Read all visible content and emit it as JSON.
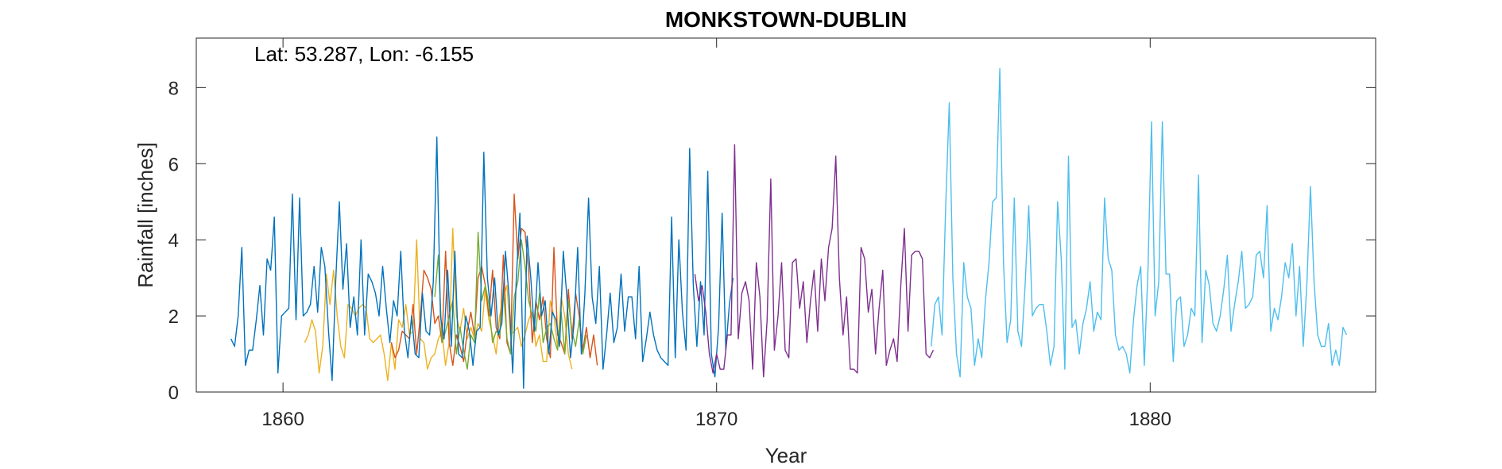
{
  "chart_data": {
    "type": "line",
    "title": "MONKSTOWN-DUBLIN",
    "xlabel": "Year",
    "ylabel": "Rainfall [inches]",
    "annotation": "Lat: 53.287, Lon: -6.155",
    "xlim": [
      1858.0,
      1885.2
    ],
    "ylim": [
      0,
      9.3
    ],
    "xticks": [
      1860,
      1870,
      1880
    ],
    "yticks": [
      0,
      2,
      4,
      6,
      8
    ],
    "grid": false,
    "legend": "none",
    "series": [
      {
        "color": "#EDB120",
        "start": 1860.5,
        "step": 0.0833,
        "values": [
          1.3,
          1.5,
          1.9,
          1.6,
          0.5,
          1.2,
          3.1,
          2.3,
          3.2,
          2.0,
          1.2,
          0.9,
          2.3,
          2.2,
          2.0,
          2.2,
          2.3,
          2.2,
          1.4,
          1.3,
          1.4,
          1.5,
          1.0,
          0.3,
          1.3,
          0.6,
          1.9,
          1.7,
          2.3,
          1.5,
          1.6,
          4.0,
          1.4,
          1.3,
          0.6,
          0.9,
          1.0,
          1.4,
          1.6,
          0.7,
          1.3,
          4.3,
          2.0,
          1.6,
          2.2,
          1.4,
          1.7,
          1.4,
          1.8,
          1.6,
          2.7,
          1.9,
          1.5,
          1.0,
          2.0,
          2.5,
          2.8,
          1.5,
          1.6,
          1.7,
          1.2,
          1.5,
          1.9,
          2.1,
          1.2,
          1.5,
          0.8,
          0.8,
          2.4,
          2.0,
          1.2,
          2.5,
          2.0,
          1.0,
          0.6
        ]
      },
      {
        "color": "#D95319",
        "start": 1862.5,
        "step": 0.0833,
        "values": [
          1.3,
          0.9,
          1.1,
          1.6,
          1.5,
          1.4,
          2.3,
          1.0,
          2.0,
          3.2,
          3.0,
          2.7,
          1.8,
          2.0,
          1.3,
          3.7,
          1.3,
          0.7,
          1.5,
          1.2,
          0.8,
          1.6,
          2.1,
          1.5,
          3.0,
          3.3,
          2.8,
          2.0,
          3.2,
          1.7,
          1.4,
          3.6,
          1.3,
          1.0,
          5.2,
          3.5,
          4.3,
          4.2,
          3.2,
          1.3,
          2.4,
          1.9,
          2.5,
          1.4,
          0.9,
          3.8,
          1.5,
          1.3,
          1.0,
          2.7,
          1.4,
          2.6,
          2.0,
          1.1,
          1.7,
          0.9,
          1.5,
          0.7
        ]
      },
      {
        "color": "#77AC30",
        "start": 1863.5,
        "step": 0.0833,
        "values": [
          2.5,
          3.6,
          1.3,
          1.6,
          2.0,
          2.4,
          1.0,
          1.7,
          1.1,
          0.6,
          1.5,
          1.3,
          4.2,
          2.4,
          2.8,
          2.3,
          1.3,
          1.6,
          1.5,
          2.7,
          1.4,
          1.0,
          2.5,
          2.9,
          4.0,
          3.3,
          2.4,
          2.0,
          1.6,
          2.6,
          1.3,
          1.7,
          1.8,
          1.4,
          1.1,
          2.1,
          1.0,
          2.4,
          1.6,
          1.2,
          1.9,
          1.0,
          1.5
        ]
      },
      {
        "color": "#0072BD",
        "start": 1858.8,
        "step": 0.0833,
        "values": [
          1.4,
          1.2,
          2.0,
          3.8,
          0.7,
          1.1,
          1.1,
          1.9,
          2.8,
          1.5,
          3.5,
          3.2,
          4.6,
          0.5,
          2.0,
          2.1,
          2.2,
          5.2,
          1.9,
          5.1,
          2.0,
          2.1,
          2.3,
          3.3,
          2.1,
          3.8,
          3.3,
          1.6,
          0.3,
          2.9,
          5.0,
          2.7,
          3.9,
          1.7,
          2.5,
          1.5,
          4.0,
          1.5,
          3.1,
          2.9,
          2.6,
          2.0,
          3.3,
          2.2,
          1.3,
          2.4,
          2.0,
          3.7,
          1.6,
          0.9,
          2.0,
          1.0,
          0.9,
          2.6,
          1.6,
          1.5,
          2.9,
          6.7,
          2.0,
          1.4,
          3.2,
          1.2,
          3.7,
          1.0,
          0.9,
          2.0,
          1.6,
          0.7,
          1.6,
          1.7,
          6.3,
          3.0,
          2.0,
          3.0,
          1.5,
          1.8,
          3.7,
          2.5,
          0.5,
          3.0,
          4.7,
          0.1,
          4.1,
          3.0,
          1.6,
          3.4,
          2.0,
          2.4,
          1.0,
          2.1,
          1.9,
          1.2,
          3.7,
          2.5,
          0.9,
          1.8,
          3.8,
          1.0,
          2.6,
          5.1,
          2.5,
          1.8,
          3.3,
          0.6,
          1.5,
          2.6,
          1.3,
          1.7,
          3.1,
          1.6,
          2.5,
          2.5,
          1.4,
          3.3,
          0.8,
          1.4,
          2.1,
          1.5,
          1.1,
          0.9,
          0.8,
          0.7,
          4.6,
          0.9,
          4.0,
          2.1,
          1.1,
          6.4,
          2.8,
          1.2,
          2.9,
          1.5,
          5.8,
          1.0,
          0.4,
          1.7,
          4.7,
          1.1,
          2.3,
          3.0
        ]
      },
      {
        "color": "#7E2F8E",
        "start": 1869.5,
        "step": 0.0833,
        "values": [
          3.1,
          2.4,
          2.8,
          2.1,
          1.0,
          0.5,
          1.0,
          0.6,
          0.6,
          1.5,
          1.5,
          6.5,
          1.4,
          2.6,
          2.9,
          2.4,
          0.6,
          3.4,
          2.5,
          0.4,
          1.9,
          5.6,
          1.1,
          2.0,
          3.4,
          1.1,
          0.9,
          3.4,
          3.5,
          2.2,
          2.9,
          1.3,
          2.4,
          3.2,
          1.6,
          3.5,
          2.4,
          3.8,
          4.3,
          6.2,
          3.0,
          1.5,
          2.5,
          0.6,
          0.6,
          0.5,
          3.8,
          3.5,
          2.1,
          2.7,
          1.0,
          2.2,
          3.2,
          0.7,
          1.1,
          1.4,
          0.8,
          2.8,
          4.3,
          1.6,
          3.6,
          3.7,
          3.7,
          3.5,
          1.0,
          0.9,
          1.1
        ]
      },
      {
        "color": "#4DBEEE",
        "start": 1874.95,
        "step": 0.0833,
        "values": [
          1.2,
          2.3,
          2.5,
          1.5,
          4.9,
          7.6,
          3.0,
          1.0,
          0.4,
          3.4,
          2.5,
          2.2,
          0.7,
          1.4,
          0.9,
          2.4,
          3.4,
          5.0,
          5.1,
          8.5,
          3.4,
          1.3,
          1.9,
          5.1,
          1.6,
          1.2,
          2.8,
          4.9,
          2.0,
          2.2,
          2.3,
          2.3,
          1.6,
          0.7,
          1.2,
          5.0,
          3.5,
          0.6,
          6.2,
          1.7,
          1.9,
          1.0,
          1.8,
          2.2,
          2.9,
          1.6,
          2.1,
          1.9,
          5.1,
          3.5,
          3.2,
          1.5,
          1.1,
          1.2,
          1.0,
          0.5,
          1.9,
          2.8,
          3.3,
          0.7,
          3.2,
          7.1,
          2.0,
          2.9,
          7.1,
          3.1,
          3.1,
          0.8,
          2.4,
          2.5,
          1.2,
          1.5,
          2.2,
          2.0,
          5.7,
          1.3,
          3.2,
          2.8,
          1.8,
          1.6,
          2.0,
          2.7,
          3.6,
          1.6,
          2.3,
          2.9,
          3.7,
          2.2,
          2.3,
          2.5,
          3.6,
          3.7,
          3.0,
          4.9,
          1.6,
          2.2,
          1.9,
          2.5,
          3.4,
          3.0,
          3.9,
          2.0,
          3.3,
          1.2,
          2.8,
          5.4,
          2.9,
          1.5,
          1.2,
          1.2,
          1.8,
          0.7,
          1.1,
          0.7,
          1.7,
          1.5
        ]
      }
    ]
  }
}
